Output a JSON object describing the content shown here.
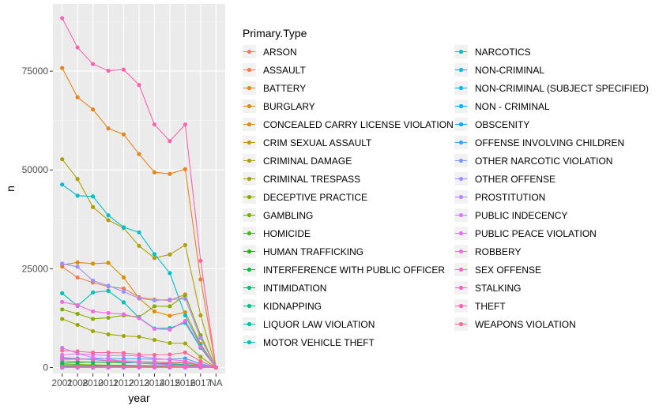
{
  "chart_data": {
    "type": "line",
    "xlabel": "year",
    "ylabel": "n",
    "x": [
      "2001",
      "2008",
      "2010",
      "2011",
      "2012",
      "2013",
      "2014",
      "2015",
      "2016",
      "2017",
      "NA"
    ],
    "y_ticks": [
      0,
      25000,
      50000,
      75000
    ],
    "y_tick_labels": [
      "0",
      "25000",
      "50000",
      "75000"
    ],
    "ylim": [
      -1500,
      92000
    ],
    "grid": true,
    "legend_title": "Primary.Type",
    "legend_position": "right",
    "series": [
      {
        "name": "ARSON",
        "color": "#F8766D",
        "values": [
          500,
          420,
          410,
          400,
          380,
          370,
          350,
          330,
          360,
          120,
          0
        ]
      },
      {
        "name": "ASSAULT",
        "color": "#F07E4D",
        "values": [
          25500,
          22800,
          21500,
          20500,
          20000,
          17800,
          17200,
          17000,
          18500,
          8000,
          0
        ]
      },
      {
        "name": "BATTERY",
        "color": "#E7851E",
        "values": [
          75800,
          68400,
          65300,
          60500,
          59000,
          54000,
          49400,
          49000,
          50200,
          22300,
          0
        ]
      },
      {
        "name": "BURGLARY",
        "color": "#DC8D00",
        "values": [
          26000,
          26600,
          26300,
          26500,
          22800,
          17500,
          14200,
          13100,
          14000,
          6000,
          0
        ]
      },
      {
        "name": "CONCEALED CARRY LICENSE VIOLATION",
        "color": "#CF9400",
        "values": [
          0,
          0,
          0,
          0,
          0,
          0,
          0,
          5,
          20,
          10,
          0
        ]
      },
      {
        "name": "CRIM SEXUAL ASSAULT",
        "color": "#C09B00",
        "values": [
          1700,
          1500,
          1400,
          1400,
          1300,
          1200,
          1100,
          1100,
          1200,
          500,
          0
        ]
      },
      {
        "name": "CRIMINAL DAMAGE",
        "color": "#B0A100",
        "values": [
          52700,
          47700,
          40600,
          37300,
          35300,
          30800,
          27700,
          28600,
          31000,
          13200,
          0
        ]
      },
      {
        "name": "CRIMINAL TRESPASS",
        "color": "#9DA700",
        "values": [
          12300,
          10800,
          9200,
          8400,
          8000,
          7800,
          7000,
          6200,
          6100,
          2700,
          0
        ]
      },
      {
        "name": "DECEPTIVE PRACTICE",
        "color": "#89AC00",
        "values": [
          14700,
          13600,
          12300,
          12600,
          13200,
          12800,
          15500,
          15500,
          18300,
          8200,
          0
        ]
      },
      {
        "name": "GAMBLING",
        "color": "#71B000",
        "values": [
          900,
          800,
          700,
          600,
          550,
          500,
          400,
          300,
          200,
          80,
          0
        ]
      },
      {
        "name": "HOMICIDE",
        "color": "#53B400",
        "values": [
          500,
          520,
          450,
          460,
          550,
          450,
          430,
          500,
          780,
          300,
          0
        ]
      },
      {
        "name": "HUMAN TRAFFICKING",
        "color": "#1EB800",
        "values": [
          0,
          0,
          0,
          10,
          20,
          30,
          30,
          20,
          20,
          10,
          0
        ]
      },
      {
        "name": "INTERFERENCE WITH PUBLIC OFFICER",
        "color": "#00BB4E",
        "values": [
          1100,
          1300,
          1400,
          1300,
          1200,
          1200,
          1100,
          900,
          800,
          350,
          0
        ]
      },
      {
        "name": "INTIMIDATION",
        "color": "#00BE6F",
        "values": [
          200,
          180,
          170,
          160,
          150,
          140,
          130,
          120,
          160,
          80,
          0
        ]
      },
      {
        "name": "KIDNAPPING",
        "color": "#00C08B",
        "values": [
          400,
          380,
          350,
          300,
          250,
          230,
          200,
          190,
          180,
          80,
          0
        ]
      },
      {
        "name": "LIQUOR LAW VIOLATION",
        "color": "#00C1A3",
        "values": [
          2500,
          2300,
          2000,
          1700,
          1500,
          1100,
          900,
          800,
          650,
          250,
          0
        ]
      },
      {
        "name": "MOTOR VEHICLE THEFT",
        "color": "#00C1B8",
        "values": [
          18800,
          15600,
          19000,
          19400,
          16500,
          12600,
          9900,
          10000,
          11300,
          5000,
          0
        ]
      },
      {
        "name": "NARCOTICS",
        "color": "#00BFCB",
        "values": [
          46300,
          43500,
          43300,
          38500,
          35500,
          34200,
          28700,
          23900,
          13200,
          5500,
          0
        ]
      },
      {
        "name": "NON-CRIMINAL",
        "color": "#00BCDB",
        "values": [
          0,
          0,
          0,
          5,
          20,
          20,
          30,
          20,
          30,
          10,
          0
        ]
      },
      {
        "name": "NON-CRIMINAL (SUBJECT SPECIFIED)",
        "color": "#00B8E7",
        "values": [
          0,
          0,
          0,
          0,
          0,
          2,
          2,
          2,
          3,
          1,
          0
        ]
      },
      {
        "name": "NON - CRIMINAL",
        "color": "#00B2F1",
        "values": [
          0,
          0,
          0,
          0,
          0,
          0,
          0,
          0,
          0,
          0,
          0
        ]
      },
      {
        "name": "OBSCENITY",
        "color": "#00ABFD",
        "values": [
          20,
          20,
          20,
          30,
          30,
          30,
          30,
          40,
          50,
          20,
          0
        ]
      },
      {
        "name": "OFFENSE INVOLVING CHILDREN",
        "color": "#3DA3FF",
        "values": [
          2100,
          2100,
          2200,
          2300,
          2200,
          2200,
          2100,
          2100,
          2300,
          1000,
          0
        ]
      },
      {
        "name": "OTHER NARCOTIC VIOLATION",
        "color": "#7B9AFF",
        "values": [
          10,
          10,
          10,
          10,
          10,
          10,
          10,
          10,
          10,
          5,
          0
        ]
      },
      {
        "name": "OTHER OFFENSE",
        "color": "#A18FFF",
        "values": [
          26300,
          25500,
          22000,
          20700,
          19200,
          17500,
          17000,
          17200,
          17400,
          7500,
          0
        ]
      },
      {
        "name": "PROSTITUTION",
        "color": "#BE84FF",
        "values": [
          5000,
          3600,
          2500,
          2200,
          1500,
          1200,
          900,
          700,
          500,
          200,
          0
        ]
      },
      {
        "name": "PUBLIC INDECENCY",
        "color": "#D47AFF",
        "values": [
          50,
          30,
          30,
          20,
          20,
          20,
          20,
          20,
          20,
          10,
          0
        ]
      },
      {
        "name": "PUBLIC PEACE VIOLATION",
        "color": "#E571F1",
        "values": [
          3200,
          3500,
          3300,
          3000,
          3100,
          2900,
          2300,
          2000,
          1700,
          700,
          0
        ]
      },
      {
        "name": "ROBBERY",
        "color": "#F16BE3",
        "values": [
          16600,
          15800,
          14200,
          13800,
          13500,
          12500,
          9800,
          9600,
          11800,
          5200,
          0
        ]
      },
      {
        "name": "SEX OFFENSE",
        "color": "#FB64D3",
        "values": [
          2300,
          2200,
          2000,
          1800,
          1700,
          1600,
          1400,
          1300,
          1400,
          600,
          0
        ]
      },
      {
        "name": "STALKING",
        "color": "#FF62C1",
        "values": [
          200,
          200,
          200,
          210,
          190,
          180,
          160,
          150,
          170,
          80,
          0
        ]
      },
      {
        "name": "THEFT",
        "color": "#FF63AD",
        "values": [
          88400,
          81000,
          76800,
          75100,
          75400,
          71500,
          61500,
          57300,
          61500,
          27000,
          0
        ]
      },
      {
        "name": "WEAPONS VIOLATION",
        "color": "#FC6897",
        "values": [
          4300,
          4100,
          3800,
          3800,
          3700,
          3300,
          3200,
          3300,
          3800,
          1600,
          0
        ]
      }
    ]
  }
}
